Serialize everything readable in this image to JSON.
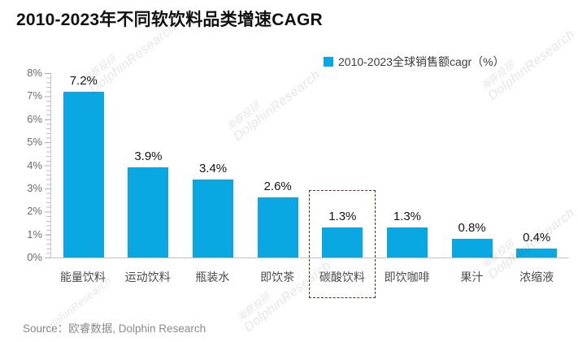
{
  "title": "2010-2023年不同软饮料品类增速CAGR",
  "legend": {
    "label": "2010-2023全球销售额cagr（%）",
    "color": "#09a8e2"
  },
  "source": "Source：欧睿数据, Dolphin Research",
  "watermark": {
    "text_cn": "海豚投研",
    "text_en": "DolphinResearch"
  },
  "chart_data": {
    "type": "bar",
    "title": "2010-2023年不同软饮料品类增速CAGR",
    "categories": [
      "能量饮料",
      "运动饮料",
      "瓶装水",
      "即饮茶",
      "碳酸饮料",
      "即饮咖啡",
      "果汁",
      "浓缩液"
    ],
    "values": [
      7.2,
      3.9,
      3.4,
      2.6,
      1.3,
      1.3,
      0.8,
      0.4
    ],
    "value_labels": [
      "7.2%",
      "3.9%",
      "3.4%",
      "2.6%",
      "1.3%",
      "1.3%",
      "0.8%",
      "0.4%"
    ],
    "xlabel": "",
    "ylabel": "",
    "ylim": [
      0,
      8
    ],
    "yticks": [
      "0%",
      "1%",
      "2%",
      "3%",
      "4%",
      "5%",
      "6%",
      "7%",
      "8%"
    ],
    "grid": false,
    "legend": [
      "2010-2023全球销售额cagr（%）"
    ],
    "legend_position": "top-right",
    "bar_color": "#09a8e2",
    "highlight": {
      "category": "碳酸饮料",
      "style": "dashed-box",
      "color": "#5f2b28"
    }
  }
}
